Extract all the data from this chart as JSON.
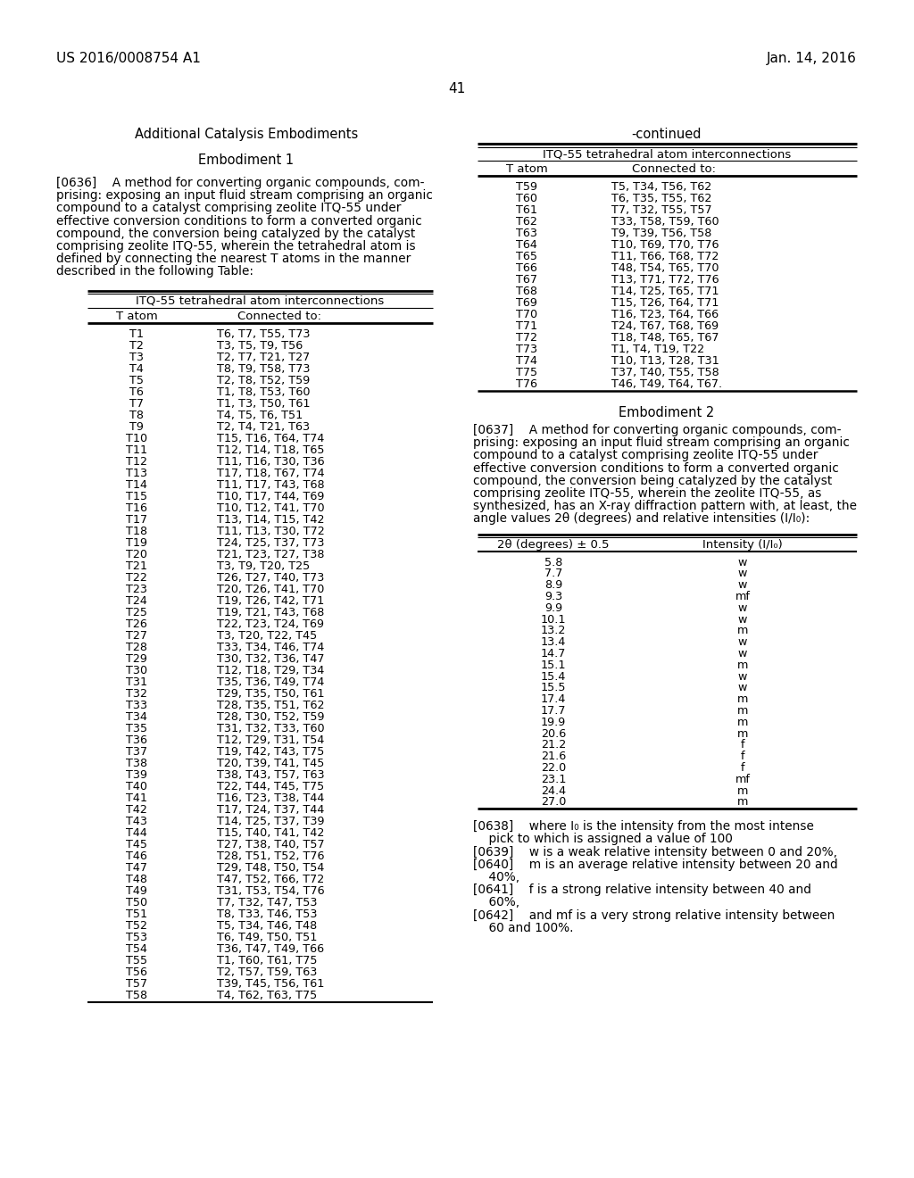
{
  "header_left": "US 2016/0008754 A1",
  "header_right": "Jan. 14, 2016",
  "page_number": "41",
  "left_section_title": "Additional Catalysis Embodiments",
  "right_section_continued": "-continued",
  "embodiment1_title": "Embodiment 1",
  "table1_title": "ITQ-55 tetrahedral atom interconnections",
  "table1_col1": "T atom",
  "table1_col2": "Connected to:",
  "table1_data": [
    [
      "T1",
      "T6, T7, T55, T73"
    ],
    [
      "T2",
      "T3, T5, T9, T56"
    ],
    [
      "T3",
      "T2, T7, T21, T27"
    ],
    [
      "T4",
      "T8, T9, T58, T73"
    ],
    [
      "T5",
      "T2, T8, T52, T59"
    ],
    [
      "T6",
      "T1, T8, T53, T60"
    ],
    [
      "T7",
      "T1, T3, T50, T61"
    ],
    [
      "T8",
      "T4, T5, T6, T51"
    ],
    [
      "T9",
      "T2, T4, T21, T63"
    ],
    [
      "T10",
      "T15, T16, T64, T74"
    ],
    [
      "T11",
      "T12, T14, T18, T65"
    ],
    [
      "T12",
      "T11, T16, T30, T36"
    ],
    [
      "T13",
      "T17, T18, T67, T74"
    ],
    [
      "T14",
      "T11, T17, T43, T68"
    ],
    [
      "T15",
      "T10, T17, T44, T69"
    ],
    [
      "T16",
      "T10, T12, T41, T70"
    ],
    [
      "T17",
      "T13, T14, T15, T42"
    ],
    [
      "T18",
      "T11, T13, T30, T72"
    ],
    [
      "T19",
      "T24, T25, T37, T73"
    ],
    [
      "T20",
      "T21, T23, T27, T38"
    ],
    [
      "T21",
      "T3, T9, T20, T25"
    ],
    [
      "T22",
      "T26, T27, T40, T73"
    ],
    [
      "T23",
      "T20, T26, T41, T70"
    ],
    [
      "T24",
      "T19, T26, T42, T71"
    ],
    [
      "T25",
      "T19, T21, T43, T68"
    ],
    [
      "T26",
      "T22, T23, T24, T69"
    ],
    [
      "T27",
      "T3, T20, T22, T45"
    ],
    [
      "T28",
      "T33, T34, T46, T74"
    ],
    [
      "T29",
      "T30, T32, T36, T47"
    ],
    [
      "T30",
      "T12, T18, T29, T34"
    ],
    [
      "T31",
      "T35, T36, T49, T74"
    ],
    [
      "T32",
      "T29, T35, T50, T61"
    ],
    [
      "T33",
      "T28, T35, T51, T62"
    ],
    [
      "T34",
      "T28, T30, T52, T59"
    ],
    [
      "T35",
      "T31, T32, T33, T60"
    ],
    [
      "T36",
      "T12, T29, T31, T54"
    ],
    [
      "T37",
      "T19, T42, T43, T75"
    ],
    [
      "T38",
      "T20, T39, T41, T45"
    ],
    [
      "T39",
      "T38, T43, T57, T63"
    ],
    [
      "T40",
      "T22, T44, T45, T75"
    ],
    [
      "T41",
      "T16, T23, T38, T44"
    ],
    [
      "T42",
      "T17, T24, T37, T44"
    ],
    [
      "T43",
      "T14, T25, T37, T39"
    ],
    [
      "T44",
      "T15, T40, T41, T42"
    ],
    [
      "T45",
      "T27, T38, T40, T57"
    ],
    [
      "T46",
      "T28, T51, T52, T76"
    ],
    [
      "T47",
      "T29, T48, T50, T54"
    ],
    [
      "T48",
      "T47, T52, T66, T72"
    ],
    [
      "T49",
      "T31, T53, T54, T76"
    ],
    [
      "T50",
      "T7, T32, T47, T53"
    ],
    [
      "T51",
      "T8, T33, T46, T53"
    ],
    [
      "T52",
      "T5, T34, T46, T48"
    ],
    [
      "T53",
      "T6, T49, T50, T51"
    ],
    [
      "T54",
      "T36, T47, T49, T66"
    ],
    [
      "T55",
      "T1, T60, T61, T75"
    ],
    [
      "T56",
      "T2, T57, T59, T63"
    ],
    [
      "T57",
      "T39, T45, T56, T61"
    ],
    [
      "T58",
      "T4, T62, T63, T75"
    ]
  ],
  "table2_data_right": [
    [
      "T59",
      "T5, T34, T56, T62"
    ],
    [
      "T60",
      "T6, T35, T55, T62"
    ],
    [
      "T61",
      "T7, T32, T55, T57"
    ],
    [
      "T62",
      "T33, T58, T59, T60"
    ],
    [
      "T63",
      "T9, T39, T56, T58"
    ],
    [
      "T64",
      "T10, T69, T70, T76"
    ],
    [
      "T65",
      "T11, T66, T68, T72"
    ],
    [
      "T66",
      "T48, T54, T65, T70"
    ],
    [
      "T67",
      "T13, T71, T72, T76"
    ],
    [
      "T68",
      "T14, T25, T65, T71"
    ],
    [
      "T69",
      "T15, T26, T64, T71"
    ],
    [
      "T70",
      "T16, T23, T64, T66"
    ],
    [
      "T71",
      "T24, T67, T68, T69"
    ],
    [
      "T72",
      "T18, T48, T65, T67"
    ],
    [
      "T73",
      "T1, T4, T19, T22"
    ],
    [
      "T74",
      "T10, T13, T28, T31"
    ],
    [
      "T75",
      "T37, T40, T55, T58"
    ],
    [
      "T76",
      "T46, T49, T64, T67."
    ]
  ],
  "embodiment2_title": "Embodiment 2",
  "table3_title_col1": "2θ (degrees) ± 0.5",
  "table3_title_col2": "Intensity (I/I₀)",
  "table3_data": [
    [
      "5.8",
      "w"
    ],
    [
      "7.7",
      "w"
    ],
    [
      "8.9",
      "w"
    ],
    [
      "9.3",
      "mf"
    ],
    [
      "9.9",
      "w"
    ],
    [
      "10.1",
      "w"
    ],
    [
      "13.2",
      "m"
    ],
    [
      "13.4",
      "w"
    ],
    [
      "14.7",
      "w"
    ],
    [
      "15.1",
      "m"
    ],
    [
      "15.4",
      "w"
    ],
    [
      "15.5",
      "w"
    ],
    [
      "17.4",
      "m"
    ],
    [
      "17.7",
      "m"
    ],
    [
      "19.9",
      "m"
    ],
    [
      "20.6",
      "m"
    ],
    [
      "21.2",
      "f"
    ],
    [
      "21.6",
      "f"
    ],
    [
      "22.0",
      "f"
    ],
    [
      "23.1",
      "mf"
    ],
    [
      "24.4",
      "m"
    ],
    [
      "27.0",
      "m"
    ]
  ],
  "p636_lines": [
    "[0636]    A method for converting organic compounds, com-",
    "prising: exposing an input fluid stream comprising an organic",
    "compound to a catalyst comprising zeolite ITQ-55 under",
    "effective conversion conditions to form a converted organic",
    "compound, the conversion being catalyzed by the catalyst",
    "comprising zeolite ITQ-55, wherein the tetrahedral atom is",
    "defined by connecting the nearest T atoms in the manner",
    "described in the following Table:"
  ],
  "p637_lines": [
    "[0637]    A method for converting organic compounds, com-",
    "prising: exposing an input fluid stream comprising an organic",
    "compound to a catalyst comprising zeolite ITQ-55 under",
    "effective conversion conditions to form a converted organic",
    "compound, the conversion being catalyzed by the catalyst",
    "comprising zeolite ITQ-55, wherein the zeolite ITQ-55, as",
    "synthesized, has an X-ray diffraction pattern with, at least, the",
    "angle values 2θ (degrees) and relative intensities (I/I₀):"
  ],
  "p638_lines": [
    "[0638]    where I₀ is the intensity from the most intense",
    "    pick to which is assigned a value of 100"
  ],
  "p639_lines": [
    "[0639]    w is a weak relative intensity between 0 and 20%,"
  ],
  "p640_lines": [
    "[0640]    m is an average relative intensity between 20 and",
    "    40%,"
  ],
  "p641_lines": [
    "[0641]    f is a strong relative intensity between 40 and",
    "    60%,"
  ],
  "p642_lines": [
    "[0642]    and mf is a very strong relative intensity between",
    "    60 and 100%."
  ],
  "bg_color": "#ffffff"
}
